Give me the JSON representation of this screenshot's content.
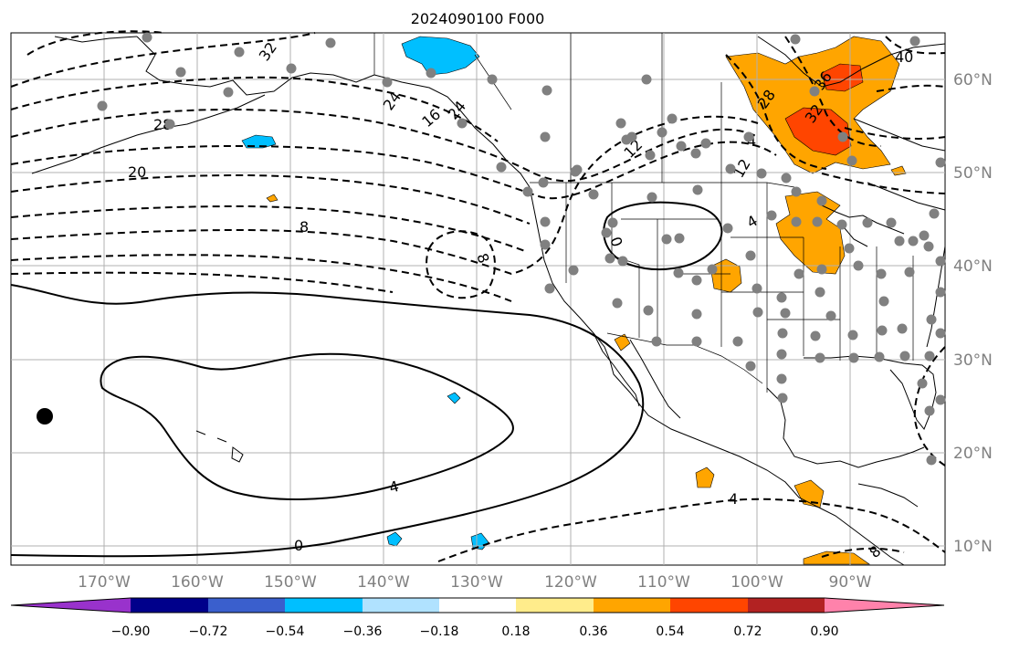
{
  "title": "2024090100 F000",
  "map": {
    "lon_labels": [
      "170°W",
      "160°W",
      "150°W",
      "140°W",
      "130°W",
      "120°W",
      "110°W",
      "100°W",
      "90°W"
    ],
    "lat_labels": [
      "60°N",
      "50°N",
      "40°N",
      "30°N",
      "20°N",
      "10°N"
    ],
    "grid": true
  },
  "contour_labels": [
    "32",
    "28",
    "20",
    "8",
    "24",
    "16",
    "12",
    "8",
    "0",
    "4",
    "0",
    "4",
    "28",
    "36",
    "40",
    "32",
    "24",
    "12",
    "4",
    "4",
    "8"
  ],
  "colorbar": {
    "tick_labels": [
      "−0.90",
      "−0.72",
      "−0.54",
      "−0.36",
      "−0.18",
      "0.18",
      "0.36",
      "0.54",
      "0.72",
      "0.90"
    ],
    "colors": [
      "#9932cc",
      "#00008b",
      "#3a5fcd",
      "#00bfff",
      "#b0e2ff",
      "#ffffff",
      "#ffec8b",
      "#ffa500",
      "#ff4500",
      "#b22222",
      "#ff82ab"
    ]
  },
  "colors": {
    "station": "#808080",
    "contour": "#000000",
    "grid": "#b0b0b0"
  }
}
